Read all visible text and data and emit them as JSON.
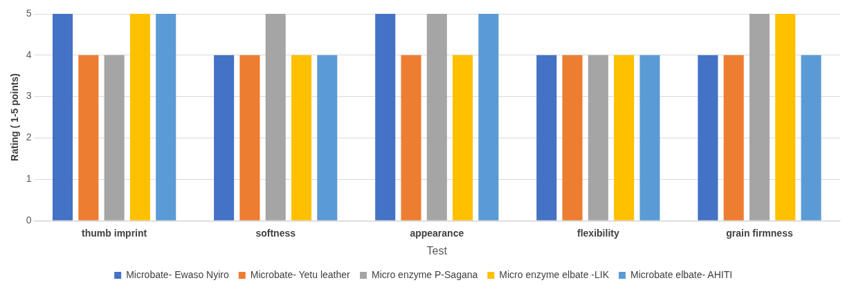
{
  "chart_data": {
    "type": "bar",
    "xlabel": "Test",
    "ylabel": "Rating ( 1-5 points)",
    "categories": [
      "thumb imprint",
      "softness",
      "appearance",
      "flexibility",
      "grain firmness"
    ],
    "series": [
      {
        "name": "Microbate- Ewaso Nyiro",
        "color": "#4472c4",
        "values": [
          5,
          4,
          5,
          4,
          4
        ]
      },
      {
        "name": "Microbate- Yetu leather",
        "color": "#ed7d31",
        "values": [
          4,
          4,
          4,
          4,
          4
        ]
      },
      {
        "name": "Micro enzyme P-Sagana",
        "color": "#a5a5a5",
        "values": [
          4,
          5,
          5,
          4,
          5
        ]
      },
      {
        "name": "Micro enzyme elbate -LIK",
        "color": "#ffc000",
        "values": [
          5,
          4,
          4,
          4,
          5
        ]
      },
      {
        "name": "Microbate elbate- AHITI",
        "color": "#5b9bd5",
        "values": [
          5,
          4,
          5,
          4,
          4
        ]
      }
    ],
    "ylim": [
      0,
      5
    ],
    "yticks": [
      0,
      1,
      2,
      3,
      4,
      5
    ],
    "grid": "y",
    "legend": "bottom"
  }
}
